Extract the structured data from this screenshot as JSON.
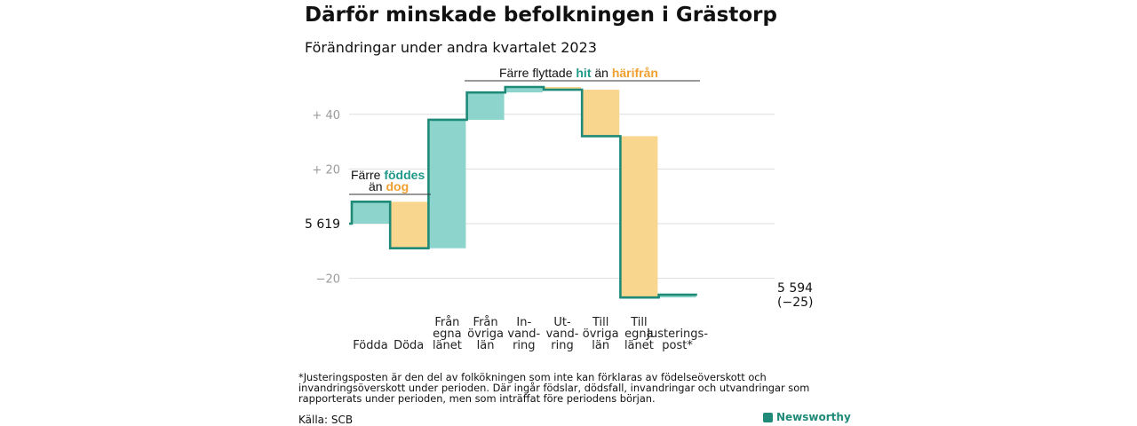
{
  "title": "Därför minskade befolkningen i Grästorp",
  "subtitle": "Förändringar under andra kvartalet 2023",
  "chart_data": {
    "type": "waterfall",
    "start_value": 5619,
    "start_label": "5 619",
    "end_value": 5594,
    "end_label": "5 594",
    "end_change_label": "(−25)",
    "y_ticks": [
      "+ 40",
      "+ 20",
      "−20"
    ],
    "y_tick_values": [
      40,
      20,
      -20
    ],
    "ylim": [
      -27,
      52
    ],
    "steps": [
      {
        "label": [
          "Födda"
        ],
        "value": 8,
        "kind": "positive"
      },
      {
        "label": [
          "Döda"
        ],
        "value": -17,
        "kind": "negative"
      },
      {
        "label": [
          "Från",
          "egna",
          "länet"
        ],
        "value": 47,
        "kind": "positive"
      },
      {
        "label": [
          "Från",
          "övriga",
          "län"
        ],
        "value": 10,
        "kind": "positive"
      },
      {
        "label": [
          "In-",
          "vand-",
          "ring"
        ],
        "value": 2,
        "kind": "positive"
      },
      {
        "label": [
          "Ut-",
          "vand-",
          "ring"
        ],
        "value": -1,
        "kind": "negative"
      },
      {
        "label": [
          "Till",
          "övriga",
          "län"
        ],
        "value": -17,
        "kind": "negative"
      },
      {
        "label": [
          "Till",
          "egna",
          "länet"
        ],
        "value": -59,
        "kind": "negative"
      },
      {
        "label": [
          "Justerings-",
          "post*"
        ],
        "value": 1,
        "kind": "positive"
      }
    ],
    "colors": {
      "positive": "#8dd5cc",
      "negative": "#f9d68d",
      "line": "#1f8a78",
      "grid": "#dddddd",
      "teal_text": "#1f9a88",
      "orange_text": "#f0a030"
    },
    "annotations": {
      "births": {
        "line1": "Färre",
        "line1_bold": "föddes",
        "line2": "än",
        "line2_bold": "dog"
      },
      "migration": {
        "prefix": "Färre flyttade",
        "bold1": "hit",
        "middle": "än",
        "bold2": "härifrån"
      }
    }
  },
  "footnote": "*Justeringsposten är den del av folkökningen som inte kan förklaras av födelseöverskott och invandringsöverskott under perioden. Där ingår födslar, dödsfall, invandringar och utvandringar som rapporterats under perioden, men som inträffat före periodens början.",
  "source": "Källa: SCB",
  "brand": "Newsworthy"
}
